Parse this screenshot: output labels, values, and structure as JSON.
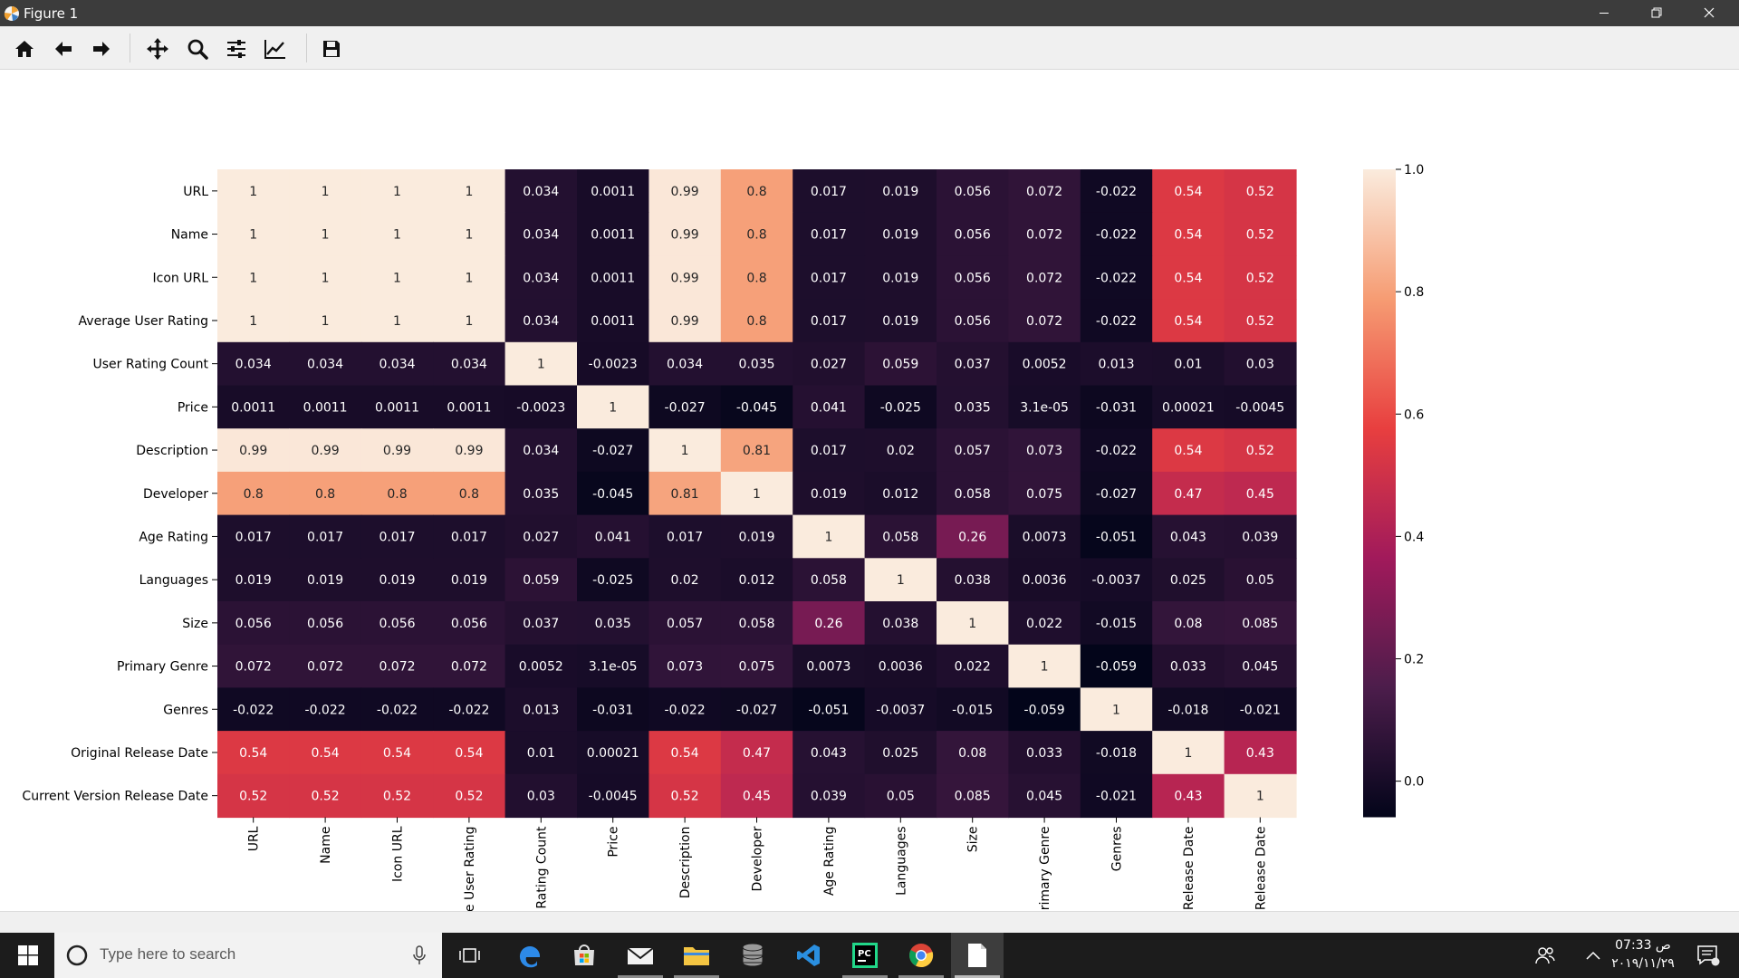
{
  "window": {
    "title": "Figure 1"
  },
  "toolbar": {
    "buttons": [
      {
        "id": "home",
        "icon": "home-icon"
      },
      {
        "id": "back",
        "icon": "arrow-left-icon"
      },
      {
        "id": "forward",
        "icon": "arrow-right-icon"
      },
      {
        "id": "pan",
        "icon": "move-icon"
      },
      {
        "id": "zoom",
        "icon": "magnifier-icon"
      },
      {
        "id": "subplots",
        "icon": "sliders-icon"
      },
      {
        "id": "axes",
        "icon": "chart-line-icon"
      },
      {
        "id": "save",
        "icon": "floppy-disk-icon"
      }
    ]
  },
  "chart_data": {
    "type": "heatmap",
    "rows": [
      "URL",
      "Name",
      "Icon URL",
      "Average User Rating",
      "User Rating Count",
      "Price",
      "Description",
      "Developer",
      "Age Rating",
      "Languages",
      "Size",
      "Primary Genre",
      "Genres",
      "Original Release Date",
      "Current Version Release Date"
    ],
    "columns_visible": [
      "URL",
      "Name",
      "Icon URL",
      "e User Rating",
      "Rating Count",
      "Price",
      "Description",
      "Developer",
      "Age Rating",
      "Languages",
      "Size",
      "rimary Genre",
      "Genres",
      "Release Date",
      "Release Date"
    ],
    "values": [
      [
        1,
        1,
        1,
        1,
        0.034,
        0.0011,
        0.99,
        0.8,
        0.017,
        0.019,
        0.056,
        0.072,
        -0.022,
        0.54,
        0.52
      ],
      [
        1,
        1,
        1,
        1,
        0.034,
        0.0011,
        0.99,
        0.8,
        0.017,
        0.019,
        0.056,
        0.072,
        -0.022,
        0.54,
        0.52
      ],
      [
        1,
        1,
        1,
        1,
        0.034,
        0.0011,
        0.99,
        0.8,
        0.017,
        0.019,
        0.056,
        0.072,
        -0.022,
        0.54,
        0.52
      ],
      [
        1,
        1,
        1,
        1,
        0.034,
        0.0011,
        0.99,
        0.8,
        0.017,
        0.019,
        0.056,
        0.072,
        -0.022,
        0.54,
        0.52
      ],
      [
        0.034,
        0.034,
        0.034,
        0.034,
        1,
        -0.0023,
        0.034,
        0.035,
        0.027,
        0.059,
        0.037,
        0.0052,
        0.013,
        0.01,
        0.03
      ],
      [
        0.0011,
        0.0011,
        0.0011,
        0.0011,
        -0.0023,
        1,
        -0.027,
        -0.045,
        0.041,
        -0.025,
        0.035,
        3.1e-05,
        -0.031,
        0.00021,
        -0.0045
      ],
      [
        0.99,
        0.99,
        0.99,
        0.99,
        0.034,
        -0.027,
        1,
        0.81,
        0.017,
        0.02,
        0.057,
        0.073,
        -0.022,
        0.54,
        0.52
      ],
      [
        0.8,
        0.8,
        0.8,
        0.8,
        0.035,
        -0.045,
        0.81,
        1,
        0.019,
        0.012,
        0.058,
        0.075,
        -0.027,
        0.47,
        0.45
      ],
      [
        0.017,
        0.017,
        0.017,
        0.017,
        0.027,
        0.041,
        0.017,
        0.019,
        1,
        0.058,
        0.26,
        0.0073,
        -0.051,
        0.043,
        0.039
      ],
      [
        0.019,
        0.019,
        0.019,
        0.019,
        0.059,
        -0.025,
        0.02,
        0.012,
        0.058,
        1,
        0.038,
        0.0036,
        -0.0037,
        0.025,
        0.05
      ],
      [
        0.056,
        0.056,
        0.056,
        0.056,
        0.037,
        0.035,
        0.057,
        0.058,
        0.26,
        0.038,
        1,
        0.022,
        -0.015,
        0.08,
        0.085
      ],
      [
        0.072,
        0.072,
        0.072,
        0.072,
        0.0052,
        3.1e-05,
        0.073,
        0.075,
        0.0073,
        0.0036,
        0.022,
        1,
        -0.059,
        0.033,
        0.045
      ],
      [
        -0.022,
        -0.022,
        -0.022,
        -0.022,
        0.013,
        -0.031,
        -0.022,
        -0.027,
        -0.051,
        -0.0037,
        -0.015,
        -0.059,
        1,
        -0.018,
        -0.021
      ],
      [
        0.54,
        0.54,
        0.54,
        0.54,
        0.01,
        0.00021,
        0.54,
        0.47,
        0.043,
        0.025,
        0.08,
        0.033,
        -0.018,
        1,
        0.43
      ],
      [
        0.52,
        0.52,
        0.52,
        0.52,
        0.03,
        -0.0045,
        0.52,
        0.45,
        0.039,
        0.05,
        0.085,
        0.045,
        -0.021,
        0.43,
        1
      ]
    ],
    "annotations": [
      [
        "1",
        "1",
        "1",
        "1",
        "0.034",
        "0.0011",
        "0.99",
        "0.8",
        "0.017",
        "0.019",
        "0.056",
        "0.072",
        "-0.022",
        "0.54",
        "0.52"
      ],
      [
        "1",
        "1",
        "1",
        "1",
        "0.034",
        "0.0011",
        "0.99",
        "0.8",
        "0.017",
        "0.019",
        "0.056",
        "0.072",
        "-0.022",
        "0.54",
        "0.52"
      ],
      [
        "1",
        "1",
        "1",
        "1",
        "0.034",
        "0.0011",
        "0.99",
        "0.8",
        "0.017",
        "0.019",
        "0.056",
        "0.072",
        "-0.022",
        "0.54",
        "0.52"
      ],
      [
        "1",
        "1",
        "1",
        "1",
        "0.034",
        "0.0011",
        "0.99",
        "0.8",
        "0.017",
        "0.019",
        "0.056",
        "0.072",
        "-0.022",
        "0.54",
        "0.52"
      ],
      [
        "0.034",
        "0.034",
        "0.034",
        "0.034",
        "1",
        "-0.0023",
        "0.034",
        "0.035",
        "0.027",
        "0.059",
        "0.037",
        "0.0052",
        "0.013",
        "0.01",
        "0.03"
      ],
      [
        "0.0011",
        "0.0011",
        "0.0011",
        "0.0011",
        "-0.0023",
        "1",
        "-0.027",
        "-0.045",
        "0.041",
        "-0.025",
        "0.035",
        "3.1e-05",
        "-0.031",
        "0.00021",
        "-0.0045"
      ],
      [
        "0.99",
        "0.99",
        "0.99",
        "0.99",
        "0.034",
        "-0.027",
        "1",
        "0.81",
        "0.017",
        "0.02",
        "0.057",
        "0.073",
        "-0.022",
        "0.54",
        "0.52"
      ],
      [
        "0.8",
        "0.8",
        "0.8",
        "0.8",
        "0.035",
        "-0.045",
        "0.81",
        "1",
        "0.019",
        "0.012",
        "0.058",
        "0.075",
        "-0.027",
        "0.47",
        "0.45"
      ],
      [
        "0.017",
        "0.017",
        "0.017",
        "0.017",
        "0.027",
        "0.041",
        "0.017",
        "0.019",
        "1",
        "0.058",
        "0.26",
        "0.0073",
        "-0.051",
        "0.043",
        "0.039"
      ],
      [
        "0.019",
        "0.019",
        "0.019",
        "0.019",
        "0.059",
        "-0.025",
        "0.02",
        "0.012",
        "0.058",
        "1",
        "0.038",
        "0.0036",
        "-0.0037",
        "0.025",
        "0.05"
      ],
      [
        "0.056",
        "0.056",
        "0.056",
        "0.056",
        "0.037",
        "0.035",
        "0.057",
        "0.058",
        "0.26",
        "0.038",
        "1",
        "0.022",
        "-0.015",
        "0.08",
        "0.085"
      ],
      [
        "0.072",
        "0.072",
        "0.072",
        "0.072",
        "0.0052",
        "3.1e-05",
        "0.073",
        "0.075",
        "0.0073",
        "0.0036",
        "0.022",
        "1",
        "-0.059",
        "0.033",
        "0.045"
      ],
      [
        "-0.022",
        "-0.022",
        "-0.022",
        "-0.022",
        "0.013",
        "-0.031",
        "-0.022",
        "-0.027",
        "-0.051",
        "-0.0037",
        "-0.015",
        "-0.059",
        "1",
        "-0.018",
        "-0.021"
      ],
      [
        "0.54",
        "0.54",
        "0.54",
        "0.54",
        "0.01",
        "0.00021",
        "0.54",
        "0.47",
        "0.043",
        "0.025",
        "0.08",
        "0.033",
        "-0.018",
        "1",
        "0.43"
      ],
      [
        "0.52",
        "0.52",
        "0.52",
        "0.52",
        "0.03",
        "-0.0045",
        "0.52",
        "0.45",
        "0.039",
        "0.05",
        "0.085",
        "0.045",
        "-0.021",
        "0.43",
        "1"
      ]
    ],
    "colorbar": {
      "range": [
        -0.059,
        1.0
      ],
      "ticks": [
        0.0,
        0.2,
        0.4,
        0.6,
        0.8,
        1.0
      ],
      "tick_labels": [
        "0.0",
        "0.2",
        "0.4",
        "0.6",
        "0.8",
        "1.0"
      ]
    },
    "colormap_stops": [
      "#03051a",
      "#4c1d4b",
      "#a11a5b",
      "#e83f3f",
      "#f69c73",
      "#faebdd"
    ],
    "grid": false
  },
  "taskbar": {
    "search_placeholder": "Type here to search",
    "apps": [
      {
        "id": "task-view",
        "icon": "task-view-icon"
      },
      {
        "id": "edge",
        "icon": "edge-icon"
      },
      {
        "id": "store",
        "icon": "store-icon"
      },
      {
        "id": "mail",
        "icon": "mail-icon"
      },
      {
        "id": "explorer",
        "icon": "folder-icon"
      },
      {
        "id": "database",
        "icon": "database-icon"
      },
      {
        "id": "vscode",
        "icon": "vscode-icon"
      },
      {
        "id": "pycharm",
        "icon": "pycharm-icon"
      },
      {
        "id": "chrome",
        "icon": "chrome-icon"
      },
      {
        "id": "notepad",
        "icon": "document-icon"
      }
    ],
    "clock_time": "07:33 ص",
    "clock_date": "٢٠١٩/١١/٢٩"
  }
}
